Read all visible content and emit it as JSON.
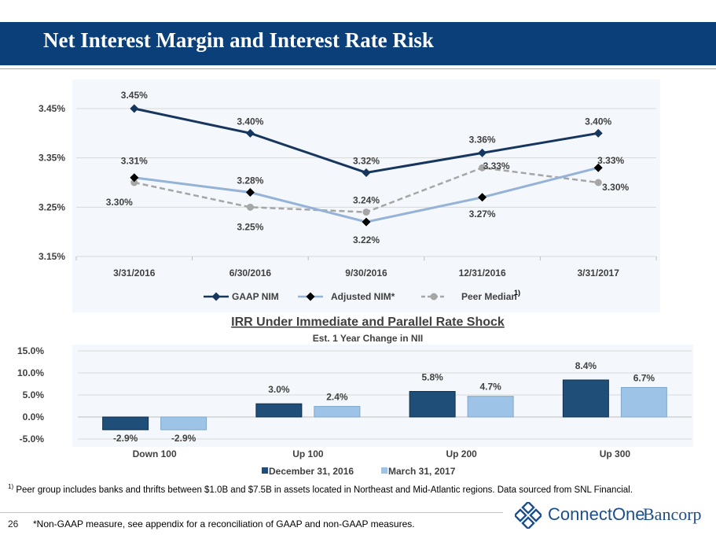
{
  "page": {
    "title": "Net Interest Margin and Interest Rate Risk",
    "page_number": "26",
    "footnote_marker": "1)",
    "footnote": "Peer group includes banks and thrifts between $1.0B and $7.5B in assets located in Northeast and Mid-Atlantic regions. Data sourced from SNL Financial.",
    "non_gaap_note": "*Non-GAAP measure, see appendix for a reconciliation of GAAP and non-GAAP measures.",
    "logo": {
      "name_part1": "ConnectOne",
      "name_part2": "Bancorp",
      "icon": "diamond-lattice-icon",
      "color": "#1c4f8a"
    }
  },
  "chart_data": [
    {
      "type": "line",
      "title": "",
      "categories": [
        "3/31/2016",
        "6/30/2016",
        "9/30/2016",
        "12/31/2016",
        "3/31/2017"
      ],
      "series": [
        {
          "name": "GAAP NIM",
          "values": [
            3.45,
            3.4,
            3.32,
            3.36,
            3.4
          ],
          "labels": [
            "3.45%",
            "3.40%",
            "3.32%",
            "3.36%",
            "3.40%"
          ],
          "color": "#17365d",
          "marker": "diamond",
          "dash": "solid"
        },
        {
          "name": "Adjusted NIM*",
          "values": [
            3.31,
            3.28,
            3.22,
            3.27,
            3.33
          ],
          "labels": [
            "3.31%",
            "3.28%",
            "3.22%",
            "3.27%",
            "3.33%"
          ],
          "color": "#95b3d7",
          "marker": "black-diamond",
          "dash": "solid"
        },
        {
          "name": "Peer Median",
          "values": [
            3.3,
            3.25,
            3.24,
            3.33,
            3.3
          ],
          "labels": [
            "3.30%",
            "3.25%",
            "3.24%",
            "3.33%",
            "3.30%"
          ],
          "color": "#a6a6a6",
          "marker": "circle",
          "dash": "dashed",
          "legend_note": "1)"
        }
      ],
      "ylim": [
        3.15,
        3.45
      ],
      "yticks": [
        "3.15%",
        "3.25%",
        "3.35%",
        "3.45%"
      ],
      "ytick_values": [
        3.15,
        3.25,
        3.35,
        3.45
      ],
      "grid": true,
      "legend": "bottom"
    },
    {
      "type": "bar",
      "title": "IRR Under Immediate and Parallel Rate Shock",
      "subtitle": "Est. 1 Year Change in NII",
      "categories": [
        "Down 100",
        "Up 100",
        "Up 200",
        "Up 300"
      ],
      "series": [
        {
          "name": "December 31, 2016",
          "values": [
            -2.9,
            3.0,
            5.8,
            8.4
          ],
          "labels": [
            "-2.9%",
            "3.0%",
            "5.8%",
            "8.4%"
          ],
          "color": "#1f4e79"
        },
        {
          "name": "March 31, 2017",
          "values": [
            -2.9,
            2.4,
            4.7,
            6.7
          ],
          "labels": [
            "-2.9%",
            "2.4%",
            "4.7%",
            "6.7%"
          ],
          "color": "#9dc3e6"
        }
      ],
      "ylim": [
        -5.0,
        15.0
      ],
      "yticks": [
        "-5.0%",
        "0.0%",
        "5.0%",
        "10.0%",
        "15.0%"
      ],
      "ytick_values": [
        -5,
        0,
        5,
        10,
        15
      ],
      "grid": true,
      "legend": "bottom"
    }
  ]
}
